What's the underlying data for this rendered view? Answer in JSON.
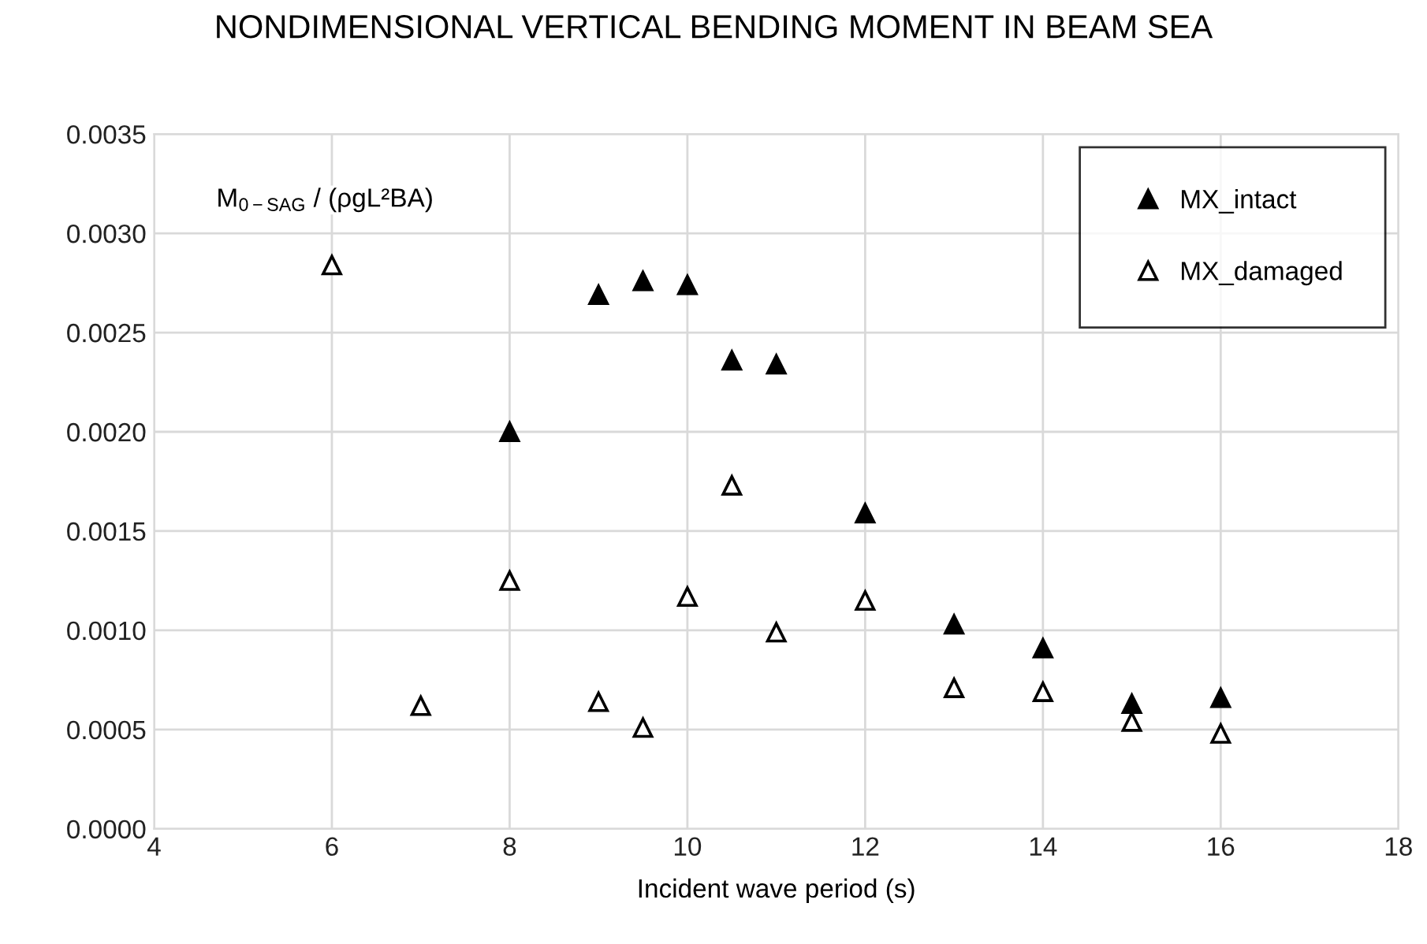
{
  "chart_data": {
    "type": "scatter",
    "title": "NONDIMENSIONAL VERTICAL BENDING MOMENT IN BEAM SEA",
    "xlabel": "Incident wave period (s)",
    "ylabel": "M$_{0−SAG}$ / (ρgL²BA)",
    "x": [
      6,
      7,
      8,
      9,
      9.5,
      10,
      10.5,
      11,
      12,
      13,
      14,
      15,
      16
    ],
    "series": [
      {
        "name": "MX_intact",
        "color": "#000000",
        "marker": "triangle",
        "values": [
          null,
          null,
          0.002,
          0.00269,
          0.00276,
          0.00274,
          0.00236,
          0.00234,
          0.00159,
          0.00103,
          0.00091,
          0.00063,
          0.00066
        ]
      },
      {
        "name": "MX_damaged",
        "color": "#ffffff",
        "marker": "triangle",
        "values": [
          0.00284,
          0.00062,
          0.00125,
          0.00064,
          0.00051,
          0.00117,
          0.00173,
          0.00099,
          0.00115,
          0.00071,
          0.00069,
          0.00054,
          0.00048
        ]
      }
    ],
    "xlim": [
      4,
      18
    ],
    "xticks": [
      4,
      6,
      8,
      10,
      12,
      14,
      16,
      18
    ],
    "ylim": [
      0,
      0.0035
    ],
    "yticks": [
      {
        "value": 0,
        "label": "0.0000"
      },
      {
        "value": 0.0005,
        "label": "0.0005"
      },
      {
        "value": 0.001,
        "label": "0.0010"
      },
      {
        "value": 0.0015,
        "label": "0.0015"
      },
      {
        "value": 0.002,
        "label": "0.0020"
      },
      {
        "value": 0.0025,
        "label": "0.0025"
      },
      {
        "value": 0.003,
        "label": "0.0030"
      },
      {
        "value": 0.0035,
        "label": "0.0035"
      }
    ],
    "grid": true,
    "legend": "top right"
  }
}
